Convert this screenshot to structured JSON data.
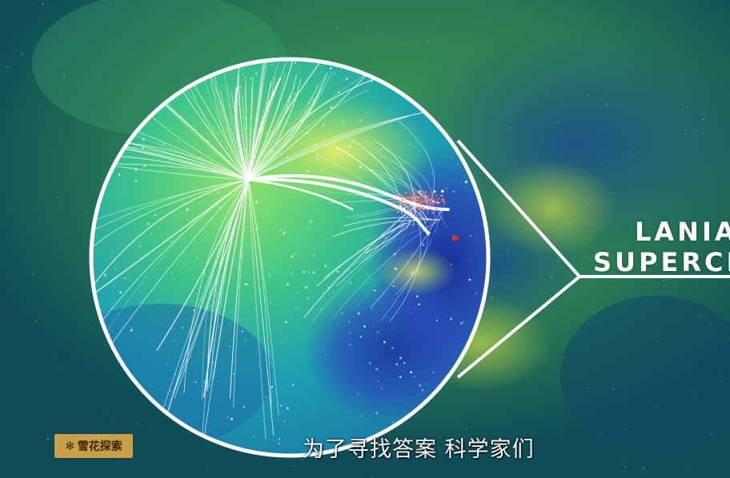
{
  "video": {
    "label_line_1": "LANIA",
    "label_line_2": "SUPERCL",
    "subtitle": "为了寻找答案 科学家们"
  },
  "logo": {
    "text": "雪花探索",
    "icon": "snowflake-icon"
  },
  "colors": {
    "logo_gold": "#c9a04a",
    "logo_ink": "#3a2608",
    "ring": "#ffffff",
    "bg_teal": "#0f4e57",
    "bg_green": "#2a8a4e"
  }
}
